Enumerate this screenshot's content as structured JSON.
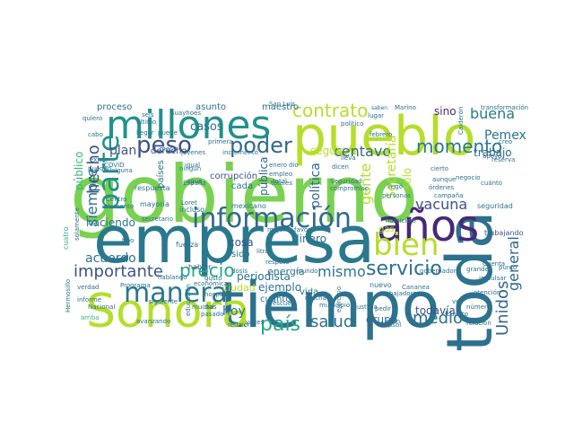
{
  "wordcloud": {
    "background": "#ffffff",
    "words": [
      {
        "text": "gobierno",
        "weight": 100,
        "color": "#7ad151"
      },
      {
        "text": "empresa",
        "weight": 94,
        "color": "#2a788e"
      },
      {
        "text": "tiempo",
        "weight": 90,
        "color": "#2c728e"
      },
      {
        "text": "Sonora",
        "weight": 80,
        "color": "#b5de2b"
      },
      {
        "text": "pueblo",
        "weight": 78,
        "color": "#b5de2b"
      },
      {
        "text": "millones",
        "weight": 70,
        "color": "#21918c"
      },
      {
        "text": "toda",
        "weight": 68,
        "color": "#2c728e"
      },
      {
        "text": "años",
        "weight": 66,
        "color": "#482878"
      },
      {
        "text": "información",
        "weight": 60,
        "color": "#31688e"
      },
      {
        "text": "parte",
        "weight": 52,
        "color": "#21918c"
      },
      {
        "text": "bien",
        "weight": 46,
        "color": "#b5de2b"
      },
      {
        "text": "manera",
        "weight": 44,
        "color": "#2a788e"
      },
      {
        "text": "peso",
        "weight": 40,
        "color": "#3b528b"
      },
      {
        "text": "poder",
        "weight": 38,
        "color": "#31688e"
      },
      {
        "text": "servicio",
        "weight": 34,
        "color": "#2c728e"
      },
      {
        "text": "precio",
        "weight": 32,
        "color": "#22a884"
      },
      {
        "text": "contrato",
        "weight": 32,
        "color": "#b5de2b"
      },
      {
        "text": "momento",
        "weight": 30,
        "color": "#2a788e"
      },
      {
        "text": "importante",
        "weight": 30,
        "color": "#3b528b"
      },
      {
        "text": "país",
        "weight": 30,
        "color": "#22a884"
      },
      {
        "text": "salud",
        "weight": 30,
        "color": "#2c728e"
      },
      {
        "text": "mismo",
        "weight": 28,
        "color": "#2a788e"
      },
      {
        "text": "centavo",
        "weight": 28,
        "color": "#31688e"
      },
      {
        "text": "hecho",
        "weight": 28,
        "color": "#3b528b"
      },
      {
        "text": "Unidos",
        "weight": 28,
        "color": "#31688e"
      },
      {
        "text": "general",
        "weight": 28,
        "color": "#31688e"
      },
      {
        "text": "medio",
        "weight": 28,
        "color": "#2c728e"
      },
      {
        "text": "siempre",
        "weight": 26,
        "color": "#2c728e"
      },
      {
        "text": "buena",
        "weight": 26,
        "color": "#2a788e"
      },
      {
        "text": "vacuna",
        "weight": 24,
        "color": "#3b528b"
      },
      {
        "text": "gente",
        "weight": 24,
        "color": "#b5de2b"
      },
      {
        "text": "Pemex",
        "weight": 22,
        "color": "#2c728e"
      },
      {
        "text": "plan",
        "weight": 22,
        "color": "#3b528b"
      },
      {
        "text": "acuerdo",
        "weight": 22,
        "color": "#2c728e"
      },
      {
        "text": "hoy",
        "weight": 22,
        "color": "#2c728e"
      },
      {
        "text": "Secretaría",
        "weight": 20,
        "color": "#b5de2b"
      },
      {
        "text": "política",
        "weight": 20,
        "color": "#31688e"
      },
      {
        "text": "público",
        "weight": 20,
        "color": "#35b779"
      },
      {
        "text": "cosa",
        "weight": 18,
        "color": "#3b528b"
      },
      {
        "text": "dinero",
        "weight": 18,
        "color": "#2c728e"
      },
      {
        "text": "todavía",
        "weight": 18,
        "color": "#3b528b"
      },
      {
        "text": "grupo",
        "weight": 18,
        "color": "#31688e"
      },
      {
        "text": "sino",
        "weight": 18,
        "color": "#482878"
      },
      {
        "text": "trabajo",
        "weight": 18,
        "color": "#31688e"
      },
      {
        "text": "solo",
        "weight": 18,
        "color": "#b5de2b"
      },
      {
        "text": "casos",
        "weight": 16,
        "color": "#2c728e"
      },
      {
        "text": "haciendo",
        "weight": 16,
        "color": "#2c728e"
      },
      {
        "text": "periodista",
        "weight": 16,
        "color": "#2c728e"
      },
      {
        "text": "pública",
        "weight": 16,
        "color": "#31688e"
      },
      {
        "text": "seguir",
        "weight": 16,
        "color": "#b5de2b"
      },
      {
        "text": "ejemplo",
        "weight": 16,
        "color": "#2c728e"
      },
      {
        "text": "energía",
        "weight": 14,
        "color": "#2c728e"
      },
      {
        "text": "ciudad",
        "weight": 14,
        "color": "#b5de2b"
      },
      {
        "text": "cuanto",
        "weight": 14,
        "color": "#2c728e"
      },
      {
        "text": "vida",
        "weight": 14,
        "color": "#2c728e"
      },
      {
        "text": "sido",
        "weight": 14,
        "color": "#2c728e"
      },
      {
        "text": "cada",
        "weight": 14,
        "color": "#2c728e"
      },
      {
        "text": "derecho",
        "weight": 14,
        "color": "#3b528b"
      },
      {
        "text": "países",
        "weight": 14,
        "color": "#2c728e"
      },
      {
        "text": "asunto",
        "weight": 14,
        "color": "#2c728e"
      },
      {
        "text": "maestro",
        "weight": 14,
        "color": "#2c728e"
      },
      {
        "text": "proceso",
        "weight": 13,
        "color": "#2c728e"
      },
      {
        "text": "corrupción",
        "weight": 13,
        "color": "#3b528b"
      },
      {
        "text": "gas",
        "weight": 12,
        "color": "#b5de2b"
      },
      {
        "text": "nuevo",
        "weight": 12,
        "color": "#2c728e"
      },
      {
        "text": "trabajando",
        "weight": 11,
        "color": "#3b528b"
      },
      {
        "text": "cuatro",
        "weight": 11,
        "color": "#35b779"
      },
      {
        "text": "fuerza",
        "weight": 11,
        "color": "#2c728e"
      },
      {
        "text": "hablar",
        "weight": 11,
        "color": "#3b528b"
      },
      {
        "text": "incluso",
        "weight": 11,
        "color": "#2c728e"
      },
      {
        "text": "mayoría",
        "weight": 11,
        "color": "#2c728e"
      },
      {
        "text": "mexicano",
        "weight": 11,
        "color": "#2c728e"
      },
      {
        "text": "respuesta",
        "weight": 11,
        "color": "#2c728e"
      },
      {
        "text": "seguridad",
        "weight": 11,
        "color": "#2c728e"
      },
      {
        "text": "Seguridad",
        "weight": 10,
        "color": "#2c728e"
      },
      {
        "text": "compromiso",
        "weight": 10,
        "color": "#2c728e"
      },
      {
        "text": "trabajadores",
        "weight": 10,
        "color": "#2c728e"
      },
      {
        "text": "personas",
        "weight": 10,
        "color": "#2c728e"
      },
      {
        "text": "órdenes",
        "weight": 10,
        "color": "#2c728e"
      },
      {
        "text": "negocio",
        "weight": 10,
        "color": "#2c728e"
      },
      {
        "text": "cierto",
        "weight": 10,
        "color": "#2c728e"
      },
      {
        "text": "aunque",
        "weight": 10,
        "color": "#2c728e"
      },
      {
        "text": "justicia",
        "weight": 10,
        "color": "#2c728e"
      },
      {
        "text": "municipio",
        "weight": 10,
        "color": "#2c728e"
      },
      {
        "text": "Cananea",
        "weight": 10,
        "color": "#2c728e"
      },
      {
        "text": "hospital",
        "weight": 10,
        "color": "#2c728e"
      },
      {
        "text": "pasado",
        "weight": 10,
        "color": "#2c728e"
      },
      {
        "text": "escuela",
        "weight": 10,
        "color": "#2c728e"
      },
      {
        "text": "relación",
        "weight": 10,
        "color": "#2c728e"
      },
      {
        "text": "informe",
        "weight": 10,
        "color": "#2c728e"
      },
      {
        "text": "Hermosillo",
        "weight": 10,
        "color": "#2c728e"
      },
      {
        "text": "verdad",
        "weight": 10,
        "color": "#2c728e"
      },
      {
        "text": "atención",
        "weight": 10,
        "color": "#2c728e"
      },
      {
        "text": "apoyo",
        "weight": 10,
        "color": "#2c728e"
      },
      {
        "text": "creo",
        "weight": 10,
        "color": "#2c728e"
      },
      {
        "text": "Cuenta",
        "weight": 10,
        "color": "#2c728e"
      },
      {
        "text": "dicen",
        "weight": 10,
        "color": "#2c728e"
      },
      {
        "text": "enero",
        "weight": 10,
        "color": "#2c728e"
      },
      {
        "text": "lugar",
        "weight": 10,
        "color": "#2c728e"
      },
      {
        "text": "Marino",
        "weight": 10,
        "color": "#2c728e"
      },
      {
        "text": "saben",
        "weight": 10,
        "color": "#2c728e"
      },
      {
        "text": "España",
        "weight": 10,
        "color": "#2c728e"
      },
      {
        "text": "igual",
        "weight": 10,
        "color": "#2c728e"
      },
      {
        "text": "primera",
        "weight": 10,
        "color": "#2c728e"
      },
      {
        "text": "secretario",
        "weight": 10,
        "color": "#2c728e"
      },
      {
        "text": "quiero",
        "weight": 10,
        "color": "#2c728e"
      },
      {
        "text": "cabo",
        "weight": 10,
        "color": "#2c728e"
      },
      {
        "text": "existe",
        "weight": 10,
        "color": "#2c728e"
      },
      {
        "text": "pueden",
        "weight": 10,
        "color": "#2c728e"
      },
      {
        "text": "COVID",
        "weight": 10,
        "color": "#2c728e"
      },
      {
        "text": "llegar",
        "weight": 10,
        "color": "#2c728e"
      },
      {
        "text": "puede",
        "weight": 10,
        "color": "#2c728e"
      },
      {
        "text": "seis",
        "weight": 10,
        "color": "#2c728e"
      },
      {
        "text": "último",
        "weight": 10,
        "color": "#2c728e"
      },
      {
        "text": "febrero",
        "weight": 10,
        "color": "#2c728e"
      },
      {
        "text": "político",
        "weight": 10,
        "color": "#2c728e"
      },
      {
        "text": "transformación",
        "weight": 10,
        "color": "#2c728e"
      },
      {
        "text": "Calderón",
        "weight": 10,
        "color": "#2c728e"
      },
      {
        "text": "cuánto",
        "weight": 10,
        "color": "#2c728e"
      },
      {
        "text": "campaña",
        "weight": 10,
        "color": "#2c728e"
      },
      {
        "text": "homicidio",
        "weight": 10,
        "color": "#2c728e"
      },
      {
        "text": "llegó",
        "weight": 10,
        "color": "#2c728e"
      },
      {
        "text": "totales",
        "weight": 10,
        "color": "#2c728e"
      },
      {
        "text": "empleo",
        "weight": 10,
        "color": "#2c728e"
      },
      {
        "text": "litro",
        "weight": 10,
        "color": "#2c728e"
      },
      {
        "text": "mejor",
        "weight": 10,
        "color": "#2c728e"
      },
      {
        "text": "favor",
        "weight": 10,
        "color": "#2c728e"
      },
      {
        "text": "ningún",
        "weight": 10,
        "color": "#2c728e"
      },
      {
        "text": "cuánto",
        "weight": 10,
        "color": "#2c728e"
      },
      {
        "text": "veces",
        "weight": 10,
        "color": "#2c728e"
      },
      {
        "text": "Repsol",
        "weight": 10,
        "color": "#2c728e"
      },
      {
        "text": "arriba",
        "weight": 10,
        "color": "#35b779"
      },
      {
        "text": "muchas",
        "weight": 10,
        "color": "#2c728e"
      },
      {
        "text": "educación",
        "weight": 10,
        "color": "#2c728e"
      },
      {
        "text": "avanzando",
        "weight": 10,
        "color": "#2c728e"
      },
      {
        "text": "reunión",
        "weight": 10,
        "color": "#2c728e"
      },
      {
        "text": "Nacional",
        "weight": 10,
        "color": "#2c728e"
      },
      {
        "text": "hablando",
        "weight": 10,
        "color": "#2c728e"
      },
      {
        "text": "económica",
        "weight": 10,
        "color": "#2c728e"
      },
      {
        "text": "gobernador",
        "weight": 10,
        "color": "#2c728e"
      },
      {
        "text": "dar",
        "weight": 10,
        "color": "#2c728e"
      },
      {
        "text": "total",
        "weight": 10,
        "color": "#2c728e"
      },
      {
        "text": "San Luis",
        "weight": 10,
        "color": "#2c728e"
      },
      {
        "text": "Suayhoes",
        "weight": 10,
        "color": "#2c728e"
      },
      {
        "text": "Loret",
        "weight": 10,
        "color": "#2c728e"
      },
      {
        "text": "dosis",
        "weight": 10,
        "color": "#2c728e"
      },
      {
        "text": "mundo",
        "weight": 10,
        "color": "#2c728e"
      },
      {
        "text": "pedir",
        "weight": 10,
        "color": "#2c728e"
      },
      {
        "text": "dio",
        "weight": 10,
        "color": "#2c728e"
      },
      {
        "text": "incrementó",
        "weight": 10,
        "color": "#2c728e"
      },
      {
        "text": "mes",
        "weight": 10,
        "color": "#2c728e"
      },
      {
        "text": "jóvenes",
        "weight": 10,
        "color": "#2c728e"
      },
      {
        "text": "alguna",
        "weight": 10,
        "color": "#2c728e"
      },
      {
        "text": "Centro",
        "weight": 10,
        "color": "#2c728e"
      },
      {
        "text": "elemento",
        "weight": 10,
        "color": "#2c728e"
      },
      {
        "text": "solamente",
        "weight": 10,
        "color": "#2c728e"
      },
      {
        "text": "tipo",
        "weight": 10,
        "color": "#2c728e"
      },
      {
        "text": "vez",
        "weight": 10,
        "color": "#2c728e"
      },
      {
        "text": "siguiente",
        "weight": 10,
        "color": "#2c728e"
      },
      {
        "text": "agua",
        "weight": 10,
        "color": "#2c728e"
      },
      {
        "text": "lleva",
        "weight": 10,
        "color": "#2c728e"
      },
      {
        "text": "mucha",
        "weight": 10,
        "color": "#2c728e"
      },
      {
        "text": "gusto",
        "weight": 10,
        "color": "#2c728e"
      },
      {
        "text": "respeto",
        "weight": 10,
        "color": "#2c728e"
      },
      {
        "text": "Programa",
        "weight": 10,
        "color": "#2c728e"
      },
      {
        "text": "número",
        "weight": 10,
        "color": "#2c728e"
      },
      {
        "text": "ejercicio",
        "weight": 10,
        "color": "#2c728e"
      },
      {
        "text": "gran",
        "weight": 10,
        "color": "#2c728e"
      },
      {
        "text": "grandes",
        "weight": 10,
        "color": "#2c728e"
      },
      {
        "text": "impulsar",
        "weight": 10,
        "color": "#2c728e"
      },
      {
        "text": "punto",
        "weight": 10,
        "color": "#2c728e"
      },
      {
        "text": "reserva",
        "weight": 10,
        "color": "#2c728e"
      }
    ]
  }
}
